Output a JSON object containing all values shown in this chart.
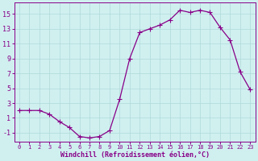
{
  "x": [
    0,
    1,
    2,
    3,
    4,
    5,
    6,
    7,
    8,
    9,
    10,
    11,
    12,
    13,
    14,
    15,
    16,
    17,
    18,
    19,
    20,
    21,
    22,
    23
  ],
  "y": [
    2.0,
    2.0,
    2.0,
    1.5,
    0.5,
    -0.3,
    -1.5,
    -1.7,
    -1.5,
    -0.7,
    3.5,
    9.0,
    12.5,
    13.0,
    13.5,
    14.2,
    15.5,
    15.2,
    15.5,
    15.2,
    13.2,
    11.5,
    7.2,
    4.8
  ],
  "line_color": "#880088",
  "marker_color": "#880088",
  "bg_color": "#d0f0f0",
  "grid_color": "#b0d8d8",
  "xlabel": "Windchill (Refroidissement éolien,°C)",
  "xlim": [
    -0.5,
    23.5
  ],
  "ylim": [
    -2.2,
    16.5
  ],
  "yticks": [
    -1,
    1,
    3,
    5,
    7,
    9,
    11,
    13,
    15
  ],
  "xticks": [
    0,
    1,
    2,
    3,
    4,
    5,
    6,
    7,
    8,
    9,
    10,
    11,
    12,
    13,
    14,
    15,
    16,
    17,
    18,
    19,
    20,
    21,
    22,
    23
  ],
  "xlabel_fontsize": 6.0,
  "ytick_fontsize": 6.0,
  "xtick_fontsize": 5.0,
  "linewidth": 0.9,
  "markersize": 2.0
}
